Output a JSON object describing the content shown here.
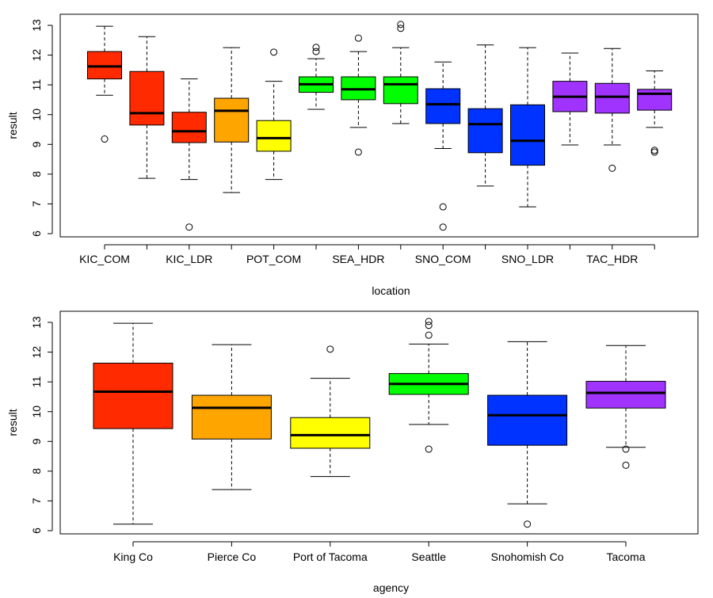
{
  "chart_data": [
    {
      "type": "box",
      "xlabel": "location",
      "ylabel": "result",
      "ylim": [
        6,
        13
      ],
      "yticks": [
        6,
        7,
        8,
        9,
        10,
        11,
        12,
        13
      ],
      "grid": false,
      "tick_labels": [
        "KIC_COM",
        "KIC_LDR",
        "POT_COM",
        "SEA_HDR",
        "SNO_COM",
        "SNO_LDR",
        "TAC_HDR"
      ],
      "boxes": [
        {
          "color": "#ff2a00",
          "min": 10.65,
          "q1": 11.2,
          "median": 11.62,
          "q3": 12.12,
          "max": 12.97,
          "outliers": [
            9.18
          ]
        },
        {
          "color": "#ff2a00",
          "min": 7.86,
          "q1": 9.65,
          "median": 10.05,
          "q3": 11.45,
          "max": 12.62,
          "outliers": []
        },
        {
          "color": "#ff2a00",
          "min": 7.82,
          "q1": 9.06,
          "median": 9.44,
          "q3": 10.08,
          "max": 11.2,
          "outliers": [
            6.22
          ]
        },
        {
          "color": "#ffa500",
          "min": 7.38,
          "q1": 9.08,
          "median": 10.13,
          "q3": 10.55,
          "max": 12.25,
          "outliers": []
        },
        {
          "color": "#ffff00",
          "min": 7.82,
          "q1": 8.77,
          "median": 9.21,
          "q3": 9.8,
          "max": 11.12,
          "outliers": [
            12.1
          ]
        },
        {
          "color": "#00ff00",
          "min": 10.18,
          "q1": 10.75,
          "median": 11.02,
          "q3": 11.27,
          "max": 11.88,
          "outliers": [
            12.12,
            12.26
          ]
        },
        {
          "color": "#00ff00",
          "min": 9.57,
          "q1": 10.5,
          "median": 10.85,
          "q3": 11.27,
          "max": 12.12,
          "outliers": [
            12.57,
            8.74
          ]
        },
        {
          "color": "#00ff00",
          "min": 9.7,
          "q1": 10.37,
          "median": 11.02,
          "q3": 11.27,
          "max": 12.25,
          "outliers": [
            12.9,
            13.03
          ]
        },
        {
          "color": "#0033ff",
          "min": 8.86,
          "q1": 9.7,
          "median": 10.35,
          "q3": 10.87,
          "max": 11.77,
          "outliers": [
            6.9,
            6.22
          ]
        },
        {
          "color": "#0033ff",
          "min": 7.6,
          "q1": 8.72,
          "median": 9.68,
          "q3": 10.2,
          "max": 12.34,
          "outliers": []
        },
        {
          "color": "#0033ff",
          "min": 6.9,
          "q1": 8.3,
          "median": 9.12,
          "q3": 10.33,
          "max": 12.25,
          "outliers": []
        },
        {
          "color": "#a133ff",
          "min": 8.98,
          "q1": 10.1,
          "median": 10.6,
          "q3": 11.12,
          "max": 12.07,
          "outliers": []
        },
        {
          "color": "#a133ff",
          "min": 8.98,
          "q1": 10.05,
          "median": 10.6,
          "q3": 11.05,
          "max": 12.22,
          "outliers": [
            8.2
          ]
        },
        {
          "color": "#a133ff",
          "min": 9.57,
          "q1": 10.15,
          "median": 10.7,
          "q3": 10.85,
          "max": 11.47,
          "outliers": [
            8.74,
            8.8
          ]
        }
      ]
    },
    {
      "type": "box",
      "xlabel": "agency",
      "ylabel": "result",
      "ylim": [
        6,
        13
      ],
      "yticks": [
        6,
        7,
        8,
        9,
        10,
        11,
        12,
        13
      ],
      "grid": false,
      "tick_labels": [
        "King Co",
        "Pierce Co",
        "Port of Tacoma",
        "Seattle",
        "Snohomish Co",
        "Tacoma"
      ],
      "boxes": [
        {
          "color": "#ff2a00",
          "min": 6.22,
          "q1": 9.43,
          "median": 10.67,
          "q3": 11.63,
          "max": 12.97,
          "outliers": []
        },
        {
          "color": "#ffa500",
          "min": 7.38,
          "q1": 9.08,
          "median": 10.13,
          "q3": 10.55,
          "max": 12.25,
          "outliers": []
        },
        {
          "color": "#ffff00",
          "min": 7.82,
          "q1": 8.77,
          "median": 9.21,
          "q3": 9.8,
          "max": 11.12,
          "outliers": [
            12.1
          ]
        },
        {
          "color": "#00ff00",
          "min": 9.57,
          "q1": 10.58,
          "median": 10.93,
          "q3": 11.28,
          "max": 12.27,
          "outliers": [
            12.57,
            12.9,
            13.03,
            8.74
          ]
        },
        {
          "color": "#0033ff",
          "min": 6.9,
          "q1": 8.87,
          "median": 9.88,
          "q3": 10.55,
          "max": 12.35,
          "outliers": [
            6.22
          ]
        },
        {
          "color": "#a133ff",
          "min": 8.8,
          "q1": 10.12,
          "median": 10.63,
          "q3": 11.02,
          "max": 12.22,
          "outliers": [
            8.74,
            8.2
          ]
        }
      ]
    }
  ]
}
